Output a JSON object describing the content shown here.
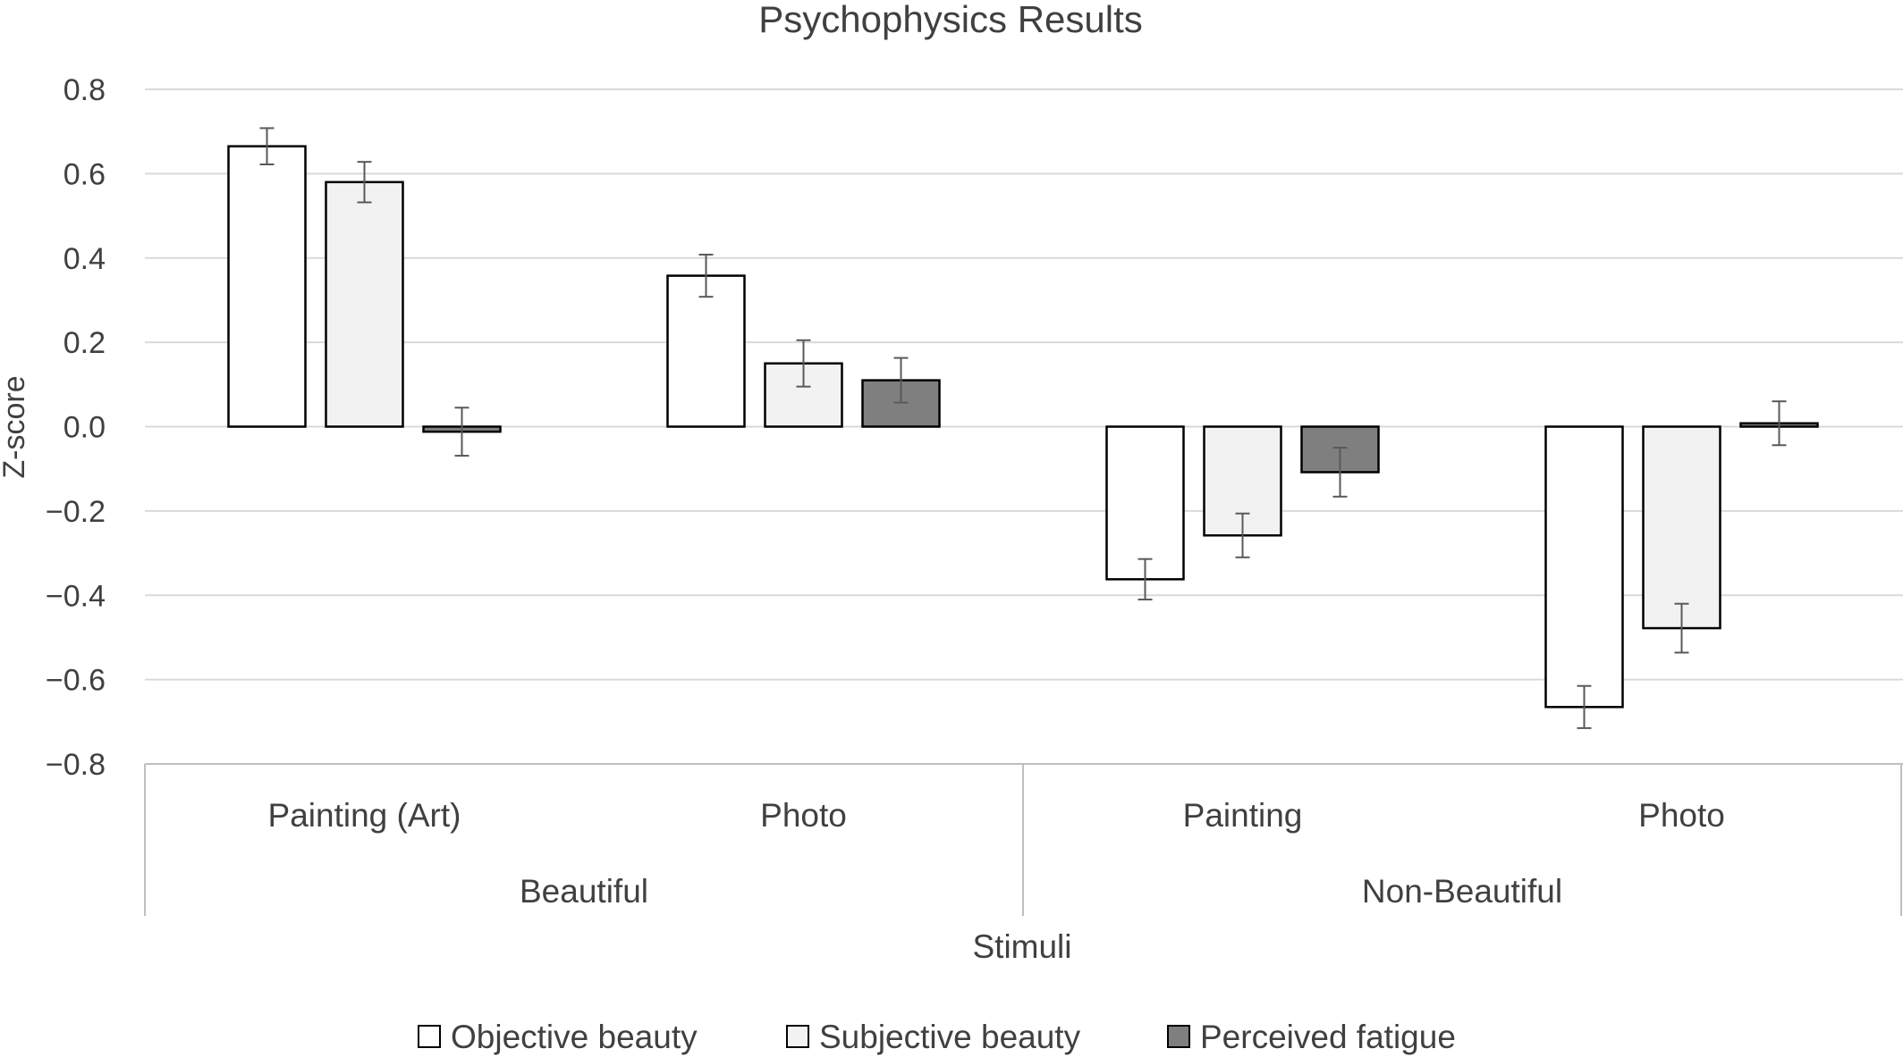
{
  "chart_data": {
    "type": "bar",
    "title": "Psychophysics Results",
    "xlabel": "Stimuli",
    "ylabel": "Z-score",
    "ylim": [
      -0.8,
      0.8
    ],
    "yticks": [
      0.8,
      0.6,
      0.4,
      0.2,
      0.0,
      -0.2,
      -0.4,
      -0.6,
      -0.8
    ],
    "ytick_labels": [
      "0.8",
      "0.6",
      "0.4",
      "0.2",
      "0.0",
      "−0.2",
      "−0.4",
      "−0.6",
      "−0.8"
    ],
    "grid": true,
    "legend_position": "bottom",
    "groups": [
      {
        "label": "Beautiful",
        "categories": [
          "Painting (Art)",
          "Photo"
        ]
      },
      {
        "label": "Non-Beautiful",
        "categories": [
          "Painting",
          "Photo"
        ]
      }
    ],
    "categories": [
      "Painting (Art)",
      "Photo",
      "Painting",
      "Photo"
    ],
    "series": [
      {
        "name": "Objective beauty",
        "color": "#ffffff",
        "values": [
          0.665,
          0.358,
          -0.362,
          -0.665
        ],
        "errors": [
          0.043,
          0.05,
          0.048,
          0.05
        ]
      },
      {
        "name": "Subjective beauty",
        "color": "#f2f2f2",
        "values": [
          0.58,
          0.15,
          -0.258,
          -0.478
        ],
        "errors": [
          0.048,
          0.055,
          0.052,
          0.058
        ]
      },
      {
        "name": "Perceived fatigue",
        "color": "#7f7f7f",
        "values": [
          -0.012,
          0.11,
          -0.108,
          0.008
        ],
        "errors": [
          0.057,
          0.053,
          0.058,
          0.052
        ]
      }
    ]
  }
}
